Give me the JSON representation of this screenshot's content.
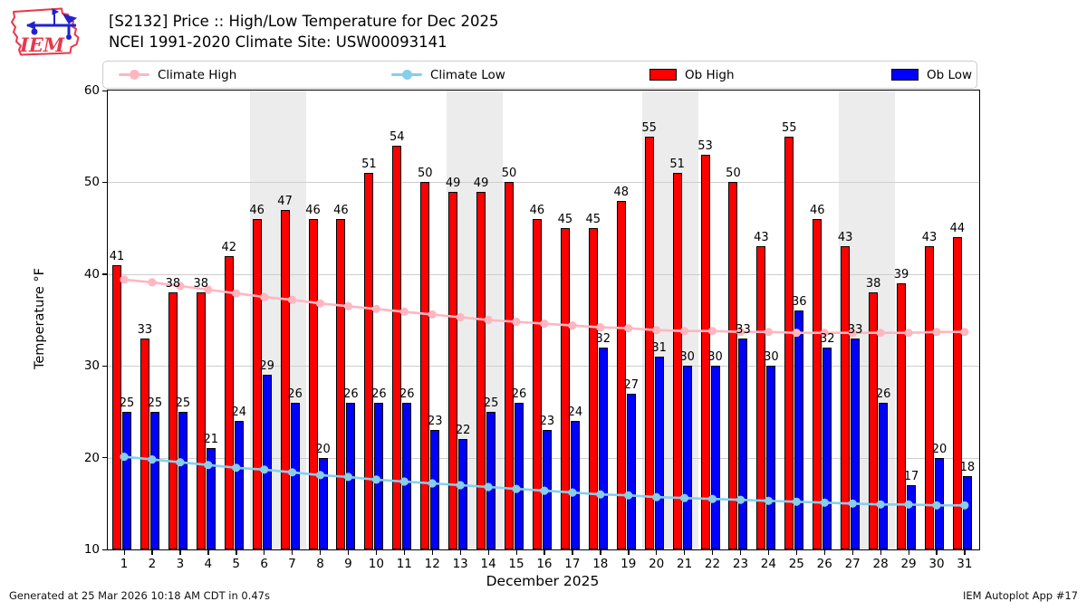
{
  "header": {
    "title_line1": "[S2132] Price :: High/Low Temperature for Dec 2025",
    "title_line2": "NCEI 1991-2020 Climate Site: USW00093141",
    "logo_text": "IEM"
  },
  "legend": [
    {
      "label": "Climate High",
      "type": "line",
      "color": "#ffb6c1"
    },
    {
      "label": "Climate Low",
      "type": "line",
      "color": "#87ceeb"
    },
    {
      "label": "Ob High",
      "type": "patch",
      "color": "#ff0000"
    },
    {
      "label": "Ob Low",
      "type": "patch",
      "color": "#0000ff"
    }
  ],
  "chart_data": {
    "type": "bar",
    "x": [
      1,
      2,
      3,
      4,
      5,
      6,
      7,
      8,
      9,
      10,
      11,
      12,
      13,
      14,
      15,
      16,
      17,
      18,
      19,
      20,
      21,
      22,
      23,
      24,
      25,
      26,
      27,
      28,
      29,
      30,
      31
    ],
    "series": [
      {
        "name": "Ob High",
        "type": "bar",
        "color": "#ff0000",
        "values": [
          41,
          33,
          38,
          38,
          42,
          46,
          47,
          46,
          46,
          51,
          54,
          50,
          49,
          49,
          50,
          46,
          45,
          45,
          48,
          55,
          51,
          53,
          50,
          43,
          55,
          46,
          43,
          38,
          39,
          43,
          44
        ],
        "labels_shown": true
      },
      {
        "name": "Ob Low",
        "type": "bar",
        "color": "#0000ff",
        "values": [
          25,
          25,
          25,
          21,
          24,
          29,
          26,
          20,
          26,
          26,
          26,
          23,
          22,
          25,
          26,
          23,
          24,
          32,
          27,
          31,
          30,
          30,
          33,
          30,
          36,
          32,
          33,
          26,
          17,
          20,
          18
        ],
        "labels_shown": true
      },
      {
        "name": "Climate High",
        "type": "line",
        "color": "#ffb6c1",
        "values": [
          39.4,
          39.1,
          38.7,
          38.3,
          37.9,
          37.5,
          37.2,
          36.8,
          36.5,
          36.2,
          35.9,
          35.6,
          35.3,
          35.0,
          34.8,
          34.6,
          34.4,
          34.2,
          34.1,
          33.9,
          33.8,
          33.8,
          33.7,
          33.7,
          33.6,
          33.6,
          33.6,
          33.6,
          33.6,
          33.7,
          33.7
        ],
        "labels_shown": false
      },
      {
        "name": "Climate Low",
        "type": "line",
        "color": "#87ceeb",
        "values": [
          20.1,
          19.8,
          19.5,
          19.2,
          18.9,
          18.7,
          18.4,
          18.1,
          17.9,
          17.6,
          17.4,
          17.2,
          17.0,
          16.8,
          16.6,
          16.4,
          16.2,
          16.0,
          15.9,
          15.7,
          15.6,
          15.5,
          15.4,
          15.3,
          15.2,
          15.1,
          15.0,
          14.9,
          14.9,
          14.8,
          14.8
        ],
        "labels_shown": false
      }
    ],
    "title": "[S2132] Price :: High/Low Temperature for Dec 2025 — NCEI 1991-2020 Climate Site: USW00093141",
    "xlabel": "December 2025",
    "ylabel": "Temperature °F",
    "ylim": [
      10,
      60
    ],
    "yticks": [
      10,
      20,
      30,
      40,
      50,
      60
    ],
    "grid": "horizontal gridlines at 20,30,40,50",
    "legend_position": "top row, 4 entries",
    "weekend_band_days": [
      [
        6,
        7
      ],
      [
        13,
        14
      ],
      [
        20,
        21
      ],
      [
        27,
        28
      ]
    ],
    "weekend_band_color": "#ececec"
  },
  "footer": {
    "left": "Generated at 25 Mar 2026 10:18 AM CDT in 0.47s",
    "right": "IEM Autoplot App #17"
  }
}
